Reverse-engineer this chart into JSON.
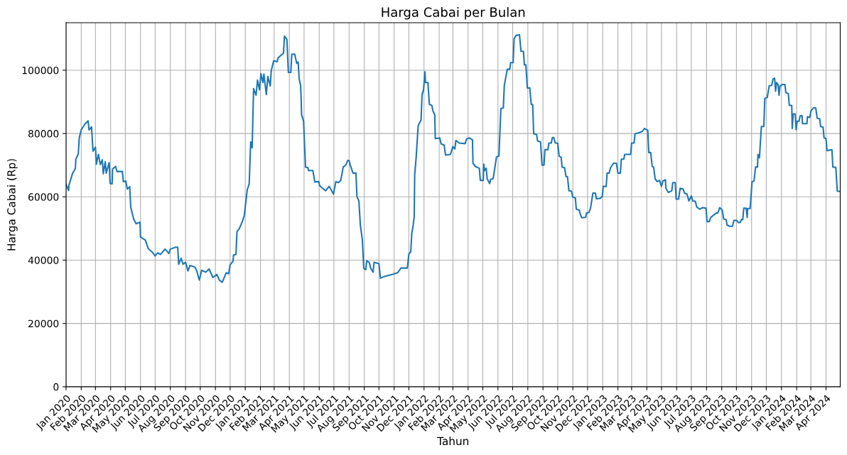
{
  "chart_data": {
    "type": "line",
    "title": "Harga Cabai per Bulan",
    "xlabel": "Tahun",
    "ylabel": "Harga Cabai (Rp)",
    "series": [
      {
        "color": "#1f77b4",
        "x": [
          "2020-01-01",
          "2020-01-06",
          "2020-01-07",
          "2020-01-14",
          "2020-01-20",
          "2020-01-21",
          "2020-01-26",
          "2020-01-28",
          "2020-02-01",
          "2020-02-09",
          "2020-02-15",
          "2020-02-17",
          "2020-02-22",
          "2020-02-25",
          "2020-03-01",
          "2020-03-03",
          "2020-03-07",
          "2020-03-11",
          "2020-03-15",
          "2020-03-17",
          "2020-03-21",
          "2020-03-23",
          "2020-03-29",
          "2020-03-31",
          "2020-04-04",
          "2020-04-05",
          "2020-04-11",
          "2020-04-14",
          "2020-04-25",
          "2020-04-27",
          "2020-05-02",
          "2020-05-05",
          "2020-05-10",
          "2020-05-12",
          "2020-05-18",
          "2020-05-23",
          "2020-05-31",
          "2020-06-01",
          "2020-06-11",
          "2020-06-17",
          "2020-06-24",
          "2020-07-01",
          "2020-07-06",
          "2020-07-12",
          "2020-07-21",
          "2020-07-29",
          "2020-08-01",
          "2020-08-12",
          "2020-08-16",
          "2020-08-18",
          "2020-08-23",
          "2020-08-27",
          "2020-09-01",
          "2020-09-06",
          "2020-09-10",
          "2020-09-20",
          "2020-09-24",
          "2020-09-29",
          "2020-10-04",
          "2020-10-12",
          "2020-10-19",
          "2020-10-27",
          "2020-11-04",
          "2020-11-09",
          "2020-11-15",
          "2020-11-23",
          "2020-11-28",
          "2020-12-01",
          "2020-12-07",
          "2020-12-08",
          "2020-12-13",
          "2020-12-15",
          "2020-12-20",
          "2020-12-27",
          "2020-12-30",
          "2021-01-05",
          "2021-01-09",
          "2021-01-12",
          "2021-01-15",
          "2021-01-18",
          "2021-01-23",
          "2021-01-26",
          "2021-01-30",
          "2021-02-02",
          "2021-02-06",
          "2021-02-08",
          "2021-02-13",
          "2021-02-16",
          "2021-02-21",
          "2021-02-23",
          "2021-02-28",
          "2021-03-07",
          "2021-03-09",
          "2021-03-20",
          "2021-03-22",
          "2021-03-27",
          "2021-03-30",
          "2021-04-04",
          "2021-04-06",
          "2021-04-12",
          "2021-04-16",
          "2021-04-19",
          "2021-04-21",
          "2021-04-24",
          "2021-04-25",
          "2021-04-26",
          "2021-04-30",
          "2021-05-04",
          "2021-05-09",
          "2021-05-10",
          "2021-05-19",
          "2021-05-23",
          "2021-05-31",
          "2021-06-02",
          "2021-06-14",
          "2021-06-21",
          "2021-06-23",
          "2021-06-30",
          "2021-07-05",
          "2021-07-10",
          "2021-07-15",
          "2021-07-20",
          "2021-07-26",
          "2021-07-29",
          "2021-08-01",
          "2021-08-03",
          "2021-08-09",
          "2021-08-15",
          "2021-08-17",
          "2021-08-21",
          "2021-08-24",
          "2021-08-28",
          "2021-08-31",
          "2021-09-04",
          "2021-09-06",
          "2021-09-11",
          "2021-09-14",
          "2021-09-19",
          "2021-09-21",
          "2021-10-01",
          "2021-10-04",
          "2021-10-10",
          "2021-10-19",
          "2021-10-29",
          "2021-11-08",
          "2021-11-15",
          "2021-11-28",
          "2021-12-01",
          "2021-12-05",
          "2021-12-07",
          "2021-12-10",
          "2021-12-12",
          "2021-12-13",
          "2021-12-16",
          "2021-12-20",
          "2021-12-26",
          "2021-12-28",
          "2021-12-31",
          "2022-01-03",
          "2022-01-04",
          "2022-01-09",
          "2022-01-12",
          "2022-01-17",
          "2022-01-19",
          "2022-01-23",
          "2022-01-24",
          "2022-02-02",
          "2022-02-05",
          "2022-02-11",
          "2022-02-14",
          "2022-02-24",
          "2022-03-01",
          "2022-03-05",
          "2022-03-07",
          "2022-03-14",
          "2022-03-26",
          "2022-03-29",
          "2022-04-04",
          "2022-04-10",
          "2022-04-11",
          "2022-04-16",
          "2022-04-24",
          "2022-04-26",
          "2022-05-02",
          "2022-05-03",
          "2022-05-05",
          "2022-05-08",
          "2022-05-10",
          "2022-05-15",
          "2022-05-17",
          "2022-05-22",
          "2022-05-24",
          "2022-05-29",
          "2022-06-03",
          "2022-06-07",
          "2022-06-12",
          "2022-06-14",
          "2022-06-20",
          "2022-06-25",
          "2022-06-27",
          "2022-07-02",
          "2022-07-04",
          "2022-07-08",
          "2022-07-15",
          "2022-07-18",
          "2022-07-23",
          "2022-07-25",
          "2022-07-28",
          "2022-07-31",
          "2022-08-05",
          "2022-08-08",
          "2022-08-11",
          "2022-08-13",
          "2022-08-19",
          "2022-08-21",
          "2022-08-27",
          "2022-08-30",
          "2022-09-03",
          "2022-09-05",
          "2022-09-11",
          "2022-09-13",
          "2022-09-18",
          "2022-09-20",
          "2022-09-23",
          "2022-09-26",
          "2022-10-01",
          "2022-10-04",
          "2022-10-08",
          "2022-10-10",
          "2022-10-15",
          "2022-10-18",
          "2022-10-21",
          "2022-10-24",
          "2022-10-29",
          "2022-11-01",
          "2022-11-06",
          "2022-11-08",
          "2022-11-14",
          "2022-11-16",
          "2022-11-19",
          "2022-11-27",
          "2022-11-29",
          "2022-12-04",
          "2022-12-07",
          "2022-12-12",
          "2022-12-17",
          "2022-12-19",
          "2022-12-27",
          "2022-12-31",
          "2023-01-02",
          "2023-01-08",
          "2023-01-10",
          "2023-01-14",
          "2023-01-17",
          "2023-01-23",
          "2023-01-29",
          "2023-02-01",
          "2023-02-06",
          "2023-02-08",
          "2023-02-13",
          "2023-02-15",
          "2023-02-27",
          "2023-03-01",
          "2023-03-06",
          "2023-03-08",
          "2023-03-15",
          "2023-03-23",
          "2023-03-27",
          "2023-04-03",
          "2023-04-05",
          "2023-04-09",
          "2023-04-12",
          "2023-04-15",
          "2023-04-18",
          "2023-04-22",
          "2023-04-27",
          "2023-05-01",
          "2023-05-04",
          "2023-05-09",
          "2023-05-10",
          "2023-05-15",
          "2023-05-22",
          "2023-05-24",
          "2023-05-29",
          "2023-05-31",
          "2023-06-05",
          "2023-06-08",
          "2023-06-14",
          "2023-06-17",
          "2023-06-22",
          "2023-06-26",
          "2023-07-01",
          "2023-07-04",
          "2023-07-09",
          "2023-07-12",
          "2023-07-18",
          "2023-07-24",
          "2023-07-31",
          "2023-08-02",
          "2023-08-07",
          "2023-08-09",
          "2023-08-15",
          "2023-08-21",
          "2023-08-24",
          "2023-08-28",
          "2023-09-02",
          "2023-09-05",
          "2023-09-10",
          "2023-09-12",
          "2023-09-17",
          "2023-09-23",
          "2023-09-26",
          "2023-10-02",
          "2023-10-05",
          "2023-10-09",
          "2023-10-11",
          "2023-10-14",
          "2023-10-16",
          "2023-10-21",
          "2023-10-23",
          "2023-10-24",
          "2023-10-29",
          "2023-11-02",
          "2023-11-06",
          "2023-11-09",
          "2023-11-13",
          "2023-11-14",
          "2023-11-17",
          "2023-11-21",
          "2023-11-26",
          "2023-11-28",
          "2023-12-03",
          "2023-12-07",
          "2023-12-12",
          "2023-12-15",
          "2023-12-18",
          "2023-12-20",
          "2023-12-22",
          "2023-12-25",
          "2023-12-27",
          "2023-12-29",
          "2024-01-03",
          "2024-01-08",
          "2024-01-10",
          "2024-01-15",
          "2024-01-17",
          "2024-01-22",
          "2024-01-23",
          "2024-01-25",
          "2024-01-29",
          "2024-01-31",
          "2024-02-02",
          "2024-02-06",
          "2024-02-08",
          "2024-02-12",
          "2024-02-13",
          "2024-02-22",
          "2024-02-23",
          "2024-02-28",
          "2024-03-01",
          "2024-03-06",
          "2024-03-11",
          "2024-03-14",
          "2024-03-19",
          "2024-03-21",
          "2024-03-26",
          "2024-03-28",
          "2024-04-01",
          "2024-04-03",
          "2024-04-13",
          "2024-04-15",
          "2024-04-21",
          "2024-04-24",
          "2024-04-30"
        ],
        "values": [
          64000,
          62000,
          63700,
          67300,
          69000,
          71900,
          73600,
          78700,
          81200,
          83100,
          84000,
          81100,
          82100,
          74400,
          75700,
          70300,
          73400,
          70200,
          71700,
          67300,
          71100,
          67500,
          70800,
          64200,
          64100,
          68800,
          69600,
          68000,
          68000,
          64800,
          65000,
          62500,
          63200,
          56800,
          53000,
          51500,
          52000,
          47300,
          46300,
          43600,
          42700,
          41300,
          42300,
          41800,
          43500,
          42100,
          43500,
          44100,
          44100,
          38700,
          40600,
          38700,
          39300,
          36600,
          38300,
          37800,
          36600,
          33700,
          36800,
          36200,
          37200,
          34500,
          35500,
          33700,
          33000,
          36000,
          35700,
          38500,
          39700,
          41600,
          41800,
          49000,
          50000,
          52600,
          54200,
          62200,
          64100,
          77400,
          75500,
          94200,
          92100,
          96900,
          93800,
          98900,
          96100,
          98800,
          92300,
          98000,
          95000,
          99800,
          103000,
          102700,
          103900,
          105400,
          110800,
          109700,
          99300,
          99300,
          105100,
          105100,
          102200,
          102600,
          97300,
          95200,
          91500,
          86000,
          83900,
          69400,
          69200,
          68300,
          68300,
          64700,
          64800,
          63500,
          61900,
          63300,
          62900,
          60900,
          64800,
          64500,
          65200,
          69400,
          70200,
          71500,
          71500,
          70200,
          67500,
          67500,
          60100,
          58700,
          51100,
          46500,
          37400,
          37000,
          39800,
          39300,
          37500,
          36200,
          39300,
          38900,
          34300,
          34700,
          35100,
          35500,
          36000,
          37500,
          37500,
          41800,
          42700,
          48400,
          51100,
          53800,
          67100,
          72500,
          82400,
          84300,
          92300,
          93800,
          99500,
          96100,
          96100,
          89200,
          88900,
          87300,
          85800,
          78400,
          78600,
          76700,
          76400,
          73200,
          73400,
          75900,
          75100,
          77800,
          77000,
          76800,
          78300,
          78600,
          78000,
          70600,
          69600,
          69000,
          65200,
          65200,
          70300,
          68300,
          69000,
          65700,
          64200,
          65500,
          65700,
          67500,
          72600,
          72900,
          87900,
          88100,
          95200,
          100300,
          100300,
          102400,
          102400,
          110000,
          111000,
          111200,
          106000,
          106000,
          101700,
          101700,
          94400,
          94400,
          89200,
          89100,
          79900,
          79700,
          77600,
          77400,
          70000,
          70000,
          74900,
          74900,
          77000,
          77000,
          78700,
          78700,
          77000,
          77000,
          72900,
          72500,
          69400,
          69200,
          66400,
          66400,
          61900,
          61800,
          59900,
          59700,
          56100,
          55800,
          54600,
          53400,
          53500,
          54900,
          55100,
          56400,
          61200,
          61200,
          59400,
          59500,
          60100,
          63300,
          63300,
          67500,
          67500,
          69200,
          70600,
          70600,
          67500,
          67500,
          71900,
          71900,
          73400,
          73400,
          77000,
          77000,
          79900,
          80200,
          80700,
          81600,
          81000,
          74000,
          74000,
          69600,
          69400,
          65700,
          64800,
          65200,
          63300,
          65000,
          65400,
          62700,
          61400,
          61900,
          64500,
          64500,
          59300,
          59300,
          62700,
          62500,
          61200,
          60900,
          58700,
          60300,
          58700,
          58600,
          56800,
          56100,
          56600,
          56400,
          52200,
          52200,
          53400,
          54200,
          54900,
          54900,
          56600,
          55800,
          53000,
          52800,
          51100,
          50700,
          50700,
          52600,
          52500,
          51900,
          51900,
          52800,
          52800,
          56400,
          56400,
          53500,
          56300,
          56300,
          64800,
          65000,
          69400,
          69400,
          73400,
          72300,
          82200,
          82200,
          91100,
          91400,
          95100,
          95200,
          97300,
          97500,
          93400,
          96100,
          95500,
          92100,
          95000,
          95500,
          95500,
          92900,
          92600,
          88900,
          88900,
          81600,
          86200,
          86200,
          81200,
          83900,
          83900,
          85600,
          85600,
          83100,
          83100,
          85300,
          85100,
          87000,
          88100,
          88100,
          84800,
          84700,
          82200,
          82000,
          78600,
          78400,
          74600,
          74900,
          69400,
          69300,
          61800,
          61700
        ]
      }
    ],
    "xlim": [
      "2020-01-01",
      "2024-04-30"
    ],
    "xticks": [
      {
        "value": "2020-01",
        "label": "Jan 2020"
      },
      {
        "value": "2020-02",
        "label": "Feb 2020"
      },
      {
        "value": "2020-03",
        "label": "Mar 2020"
      },
      {
        "value": "2020-04",
        "label": "Apr 2020"
      },
      {
        "value": "2020-05",
        "label": "May 2020"
      },
      {
        "value": "2020-06",
        "label": "Jun 2020"
      },
      {
        "value": "2020-07",
        "label": "Jul 2020"
      },
      {
        "value": "2020-08",
        "label": "Aug 2020"
      },
      {
        "value": "2020-09",
        "label": "Sep 2020"
      },
      {
        "value": "2020-10",
        "label": "Oct 2020"
      },
      {
        "value": "2020-11",
        "label": "Nov 2020"
      },
      {
        "value": "2020-12",
        "label": "Dec 2020"
      },
      {
        "value": "2021-01",
        "label": "Jan 2021"
      },
      {
        "value": "2021-02",
        "label": "Feb 2021"
      },
      {
        "value": "2021-03",
        "label": "Mar 2021"
      },
      {
        "value": "2021-04",
        "label": "Apr 2021"
      },
      {
        "value": "2021-05",
        "label": "May 2021"
      },
      {
        "value": "2021-06",
        "label": "Jun 2021"
      },
      {
        "value": "2021-07",
        "label": "Jul 2021"
      },
      {
        "value": "2021-08",
        "label": "Aug 2021"
      },
      {
        "value": "2021-09",
        "label": "Sep 2021"
      },
      {
        "value": "2021-10",
        "label": "Oct 2021"
      },
      {
        "value": "2021-11",
        "label": "Nov 2021"
      },
      {
        "value": "2021-12",
        "label": "Dec 2021"
      },
      {
        "value": "2022-01",
        "label": "Jan 2022"
      },
      {
        "value": "2022-02",
        "label": "Feb 2022"
      },
      {
        "value": "2022-03",
        "label": "Mar 2022"
      },
      {
        "value": "2022-04",
        "label": "Apr 2022"
      },
      {
        "value": "2022-05",
        "label": "May 2022"
      },
      {
        "value": "2022-06",
        "label": "Jun 2022"
      },
      {
        "value": "2022-07",
        "label": "Jul 2022"
      },
      {
        "value": "2022-08",
        "label": "Aug 2022"
      },
      {
        "value": "2022-09",
        "label": "Sep 2022"
      },
      {
        "value": "2022-10",
        "label": "Oct 2022"
      },
      {
        "value": "2022-11",
        "label": "Nov 2022"
      },
      {
        "value": "2022-12",
        "label": "Dec 2022"
      },
      {
        "value": "2023-01",
        "label": "Jan 2023"
      },
      {
        "value": "2023-02",
        "label": "Feb 2023"
      },
      {
        "value": "2023-03",
        "label": "Mar 2023"
      },
      {
        "value": "2023-04",
        "label": "Apr 2023"
      },
      {
        "value": "2023-05",
        "label": "May 2023"
      },
      {
        "value": "2023-06",
        "label": "Jun 2023"
      },
      {
        "value": "2023-07",
        "label": "Jul 2023"
      },
      {
        "value": "2023-08",
        "label": "Aug 2023"
      },
      {
        "value": "2023-09",
        "label": "Sep 2023"
      },
      {
        "value": "2023-10",
        "label": "Oct 2023"
      },
      {
        "value": "2023-11",
        "label": "Nov 2023"
      },
      {
        "value": "2023-12",
        "label": "Dec 2023"
      },
      {
        "value": "2024-01",
        "label": "Jan 2024"
      },
      {
        "value": "2024-02",
        "label": "Feb 2024"
      },
      {
        "value": "2024-03",
        "label": "Mar 2024"
      },
      {
        "value": "2024-04",
        "label": "Apr 2024"
      }
    ],
    "ylim": [
      0,
      115000
    ],
    "yticks": [
      0,
      20000,
      40000,
      60000,
      80000,
      100000
    ],
    "grid": true
  }
}
